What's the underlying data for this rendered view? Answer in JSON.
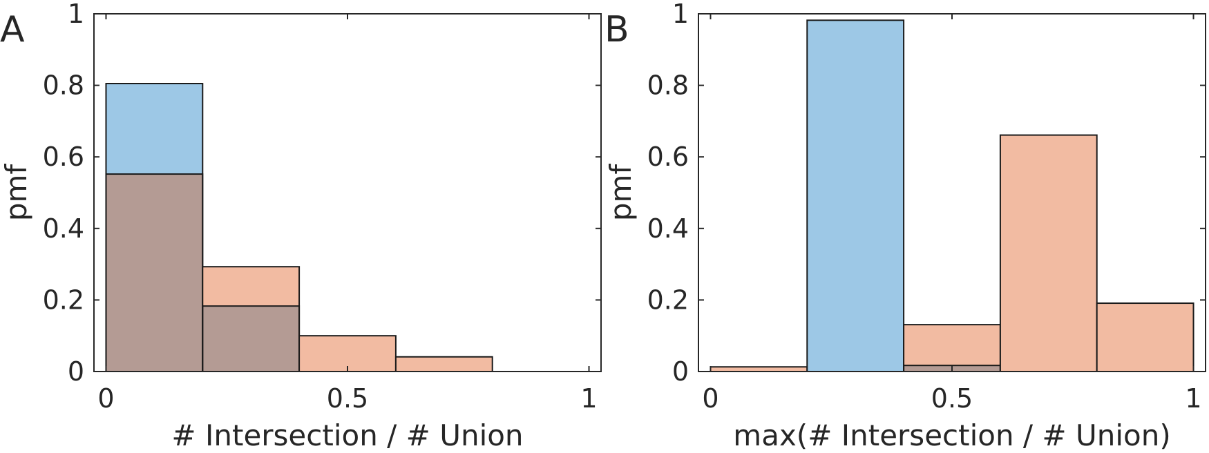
{
  "colors": {
    "blue": "#9dc8e6",
    "orange": "#f2bba2",
    "overlap": "#b49b94",
    "edge": "#1a1a1a",
    "axis": "#262626"
  },
  "chart_data": [
    {
      "type": "bar",
      "panel_label": "A",
      "xlabel": "# Intersection / # Union",
      "ylabel": "pmf",
      "xlim": [
        -0.025,
        1.025
      ],
      "ylim": [
        0,
        1
      ],
      "xticks": [
        0,
        0.5,
        1
      ],
      "xtick_labels": [
        "0",
        "0.5",
        "1"
      ],
      "yticks": [
        0,
        0.2,
        0.4,
        0.6,
        0.8,
        1
      ],
      "ytick_labels": [
        "0",
        "0.2",
        "0.4",
        "0.6",
        "0.8",
        "1"
      ],
      "bin_edges": [
        0,
        0.2,
        0.4,
        0.6,
        0.8,
        1.0
      ],
      "grid": false,
      "series": [
        {
          "color": "blue",
          "values": [
            0.805,
            0.183,
            0,
            0,
            0
          ]
        },
        {
          "color": "orange",
          "values": [
            0.552,
            0.293,
            0.1,
            0.041,
            0
          ]
        }
      ]
    },
    {
      "type": "bar",
      "panel_label": "B",
      "xlabel": "max(# Intersection / # Union)",
      "ylabel": "pmf",
      "xlim": [
        -0.025,
        1.025
      ],
      "ylim": [
        0,
        1
      ],
      "xticks": [
        0,
        0.5,
        1
      ],
      "xtick_labels": [
        "0",
        "0.5",
        "1"
      ],
      "yticks": [
        0,
        0.2,
        0.4,
        0.6,
        0.8,
        1
      ],
      "ytick_labels": [
        "0",
        "0.2",
        "0.4",
        "0.6",
        "0.8",
        "1"
      ],
      "bin_edges": [
        0,
        0.2,
        0.4,
        0.6,
        0.8,
        1.0
      ],
      "grid": false,
      "series": [
        {
          "color": "blue",
          "values": [
            0,
            0.982,
            0.017,
            0,
            0
          ]
        },
        {
          "color": "orange",
          "values": [
            0.013,
            0,
            0.131,
            0.661,
            0.191
          ]
        }
      ]
    }
  ]
}
